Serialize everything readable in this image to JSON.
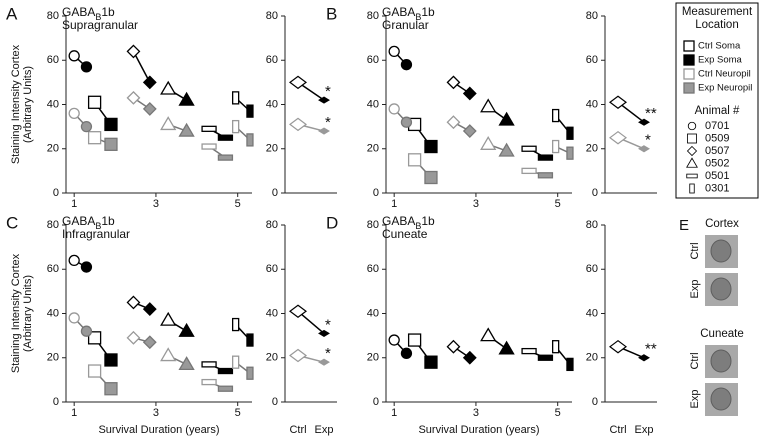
{
  "chart_data": [
    {
      "type": "paired-scatter",
      "panel": "A",
      "title": [
        "GABA",
        "B",
        "1b"
      ],
      "subtitle": "Supragranular",
      "xlim": [
        0.8,
        5.35
      ],
      "xticks": [
        1,
        3,
        5
      ],
      "ylim": [
        0,
        80
      ],
      "yticks": [
        0,
        20,
        40,
        60,
        80
      ],
      "series": [
        {
          "name": "Ctrl Soma",
          "color": "#000000",
          "fill": "#ffffff",
          "x": [
            1.0,
            1.5,
            2.45,
            3.3,
            4.3,
            4.95
          ],
          "values": [
            62,
            41,
            64,
            47,
            29,
            43
          ]
        },
        {
          "name": "Exp Soma",
          "color": "#000000",
          "fill": "#000000",
          "x": [
            1.3,
            1.9,
            2.85,
            3.75,
            4.7,
            5.3
          ],
          "values": [
            57,
            31,
            50,
            42,
            25,
            37
          ]
        },
        {
          "name": "Ctrl Neuropil",
          "color": "#999999",
          "fill": "#ffffff",
          "x": [
            1.0,
            1.5,
            2.45,
            3.3,
            4.3,
            4.95
          ],
          "values": [
            36,
            25,
            43,
            31,
            21,
            30
          ]
        },
        {
          "name": "Exp Neuropil",
          "color": "#777777",
          "fill": "#999999",
          "x": [
            1.3,
            1.9,
            2.85,
            3.75,
            4.7,
            5.3
          ],
          "values": [
            30,
            22,
            38,
            28,
            16,
            24
          ]
        }
      ]
    },
    {
      "type": "mean-pair",
      "categories": [
        null,
        null
      ],
      "ylim": [
        0,
        80
      ],
      "yticks": [
        0,
        20,
        40,
        60,
        80
      ],
      "series": [
        {
          "color": "#000000",
          "values": [
            50,
            42
          ],
          "annotation": "*"
        },
        {
          "color": "#999999",
          "values": [
            31,
            28
          ],
          "annotation": "*"
        }
      ]
    },
    {
      "type": "paired-scatter",
      "panel": "B",
      "title": [
        "GABA",
        "B",
        "1b"
      ],
      "subtitle": "Granular",
      "xlim": [
        0.8,
        5.35
      ],
      "xticks": [
        1,
        3,
        5
      ],
      "ylim": [
        0,
        80
      ],
      "yticks": [
        0,
        20,
        40,
        60,
        80
      ],
      "series": [
        {
          "color": "#000000",
          "fill": "#ffffff",
          "x": [
            1.0,
            1.5,
            2.45,
            3.3,
            4.3,
            4.95
          ],
          "values": [
            64,
            31,
            50,
            39,
            20,
            35
          ]
        },
        {
          "color": "#000000",
          "fill": "#000000",
          "x": [
            1.3,
            1.9,
            2.85,
            3.75,
            4.7,
            5.3
          ],
          "values": [
            58,
            21,
            45,
            33,
            16,
            27
          ]
        },
        {
          "color": "#999999",
          "fill": "#ffffff",
          "x": [
            1.0,
            1.5,
            2.45,
            3.3,
            4.3,
            4.95
          ],
          "values": [
            38,
            15,
            32,
            22,
            10,
            21
          ]
        },
        {
          "color": "#777777",
          "fill": "#999999",
          "x": [
            1.3,
            1.9,
            2.85,
            3.75,
            4.7,
            5.3
          ],
          "values": [
            32,
            7,
            28,
            19,
            8,
            18
          ]
        }
      ]
    },
    {
      "type": "mean-pair",
      "categories": [
        null,
        null
      ],
      "ylim": [
        0,
        80
      ],
      "yticks": [
        0,
        20,
        40,
        60,
        80
      ],
      "series": [
        {
          "color": "#000000",
          "values": [
            41,
            32
          ],
          "annotation": "**"
        },
        {
          "color": "#999999",
          "values": [
            25,
            20
          ],
          "annotation": "*"
        }
      ]
    },
    {
      "type": "paired-scatter",
      "panel": "C",
      "title": [
        "GABA",
        "B",
        "1b"
      ],
      "subtitle": "Infragranular",
      "xlim": [
        0.8,
        5.35
      ],
      "xticks": [
        1,
        3,
        5
      ],
      "ylim": [
        0,
        80
      ],
      "yticks": [
        0,
        20,
        40,
        60,
        80
      ],
      "series": [
        {
          "color": "#000000",
          "fill": "#ffffff",
          "x": [
            1.0,
            1.5,
            2.45,
            3.3,
            4.3,
            4.95
          ],
          "values": [
            64,
            29,
            45,
            37,
            17,
            35
          ]
        },
        {
          "color": "#000000",
          "fill": "#000000",
          "x": [
            1.3,
            1.9,
            2.85,
            3.75,
            4.7,
            5.3
          ],
          "values": [
            61,
            19,
            42,
            32,
            14,
            28
          ]
        },
        {
          "color": "#999999",
          "fill": "#ffffff",
          "x": [
            1.0,
            1.5,
            2.45,
            3.3,
            4.3,
            4.95
          ],
          "values": [
            38,
            14,
            29,
            21,
            9,
            18
          ]
        },
        {
          "color": "#777777",
          "fill": "#999999",
          "x": [
            1.3,
            1.9,
            2.85,
            3.75,
            4.7,
            5.3
          ],
          "values": [
            32,
            6,
            27,
            17,
            6,
            13
          ]
        }
      ]
    },
    {
      "type": "mean-pair",
      "categories": [
        "Ctrl",
        "Exp"
      ],
      "ylim": [
        0,
        80
      ],
      "yticks": [
        0,
        20,
        40,
        60,
        80
      ],
      "series": [
        {
          "color": "#000000",
          "values": [
            41,
            31
          ],
          "annotation": "*"
        },
        {
          "color": "#999999",
          "values": [
            21,
            18
          ],
          "annotation": "*"
        }
      ]
    },
    {
      "type": "paired-scatter",
      "panel": "D",
      "title": [
        "GABA",
        "B",
        "1b"
      ],
      "subtitle": "Cuneate",
      "xlim": [
        0.8,
        5.35
      ],
      "xticks": [
        1,
        3,
        5
      ],
      "ylim": [
        0,
        80
      ],
      "yticks": [
        0,
        20,
        40,
        60,
        80
      ],
      "series": [
        {
          "color": "#000000",
          "fill": "#ffffff",
          "x": [
            1.0,
            1.5,
            2.45,
            3.3,
            4.3,
            4.95
          ],
          "values": [
            28,
            28,
            25,
            30,
            23,
            25
          ]
        },
        {
          "color": "#000000",
          "fill": "#000000",
          "x": [
            1.3,
            1.9,
            2.85,
            3.75,
            4.7,
            5.3
          ],
          "values": [
            22,
            18,
            20,
            24,
            20,
            17
          ]
        }
      ]
    },
    {
      "type": "mean-pair",
      "categories": [
        "Ctrl",
        "Exp"
      ],
      "ylim": [
        0,
        80
      ],
      "yticks": [
        0,
        20,
        40,
        60,
        80
      ],
      "series": [
        {
          "color": "#000000",
          "values": [
            25,
            20
          ],
          "annotation": "**"
        }
      ]
    }
  ],
  "y_label": [
    "Staining Intensity Cortex",
    "(Arbitrary Units)"
  ],
  "x_label": "Survival Duration (years)",
  "legend": {
    "title": [
      "Measurement",
      "Location"
    ],
    "animal_title": "Animal #",
    "animals": [
      "0701",
      "0509",
      "0507",
      "0502",
      "0501",
      "0301"
    ],
    "markers": [
      "circle",
      "square",
      "diamond",
      "triangle",
      "dash",
      "bar"
    ]
  },
  "panel_e": {
    "label": "E",
    "groups": [
      {
        "title": "Cortex",
        "rows": [
          "Ctrl",
          "Exp"
        ]
      },
      {
        "title": "Cuneate",
        "rows": [
          "Ctrl",
          "Exp"
        ]
      }
    ]
  }
}
